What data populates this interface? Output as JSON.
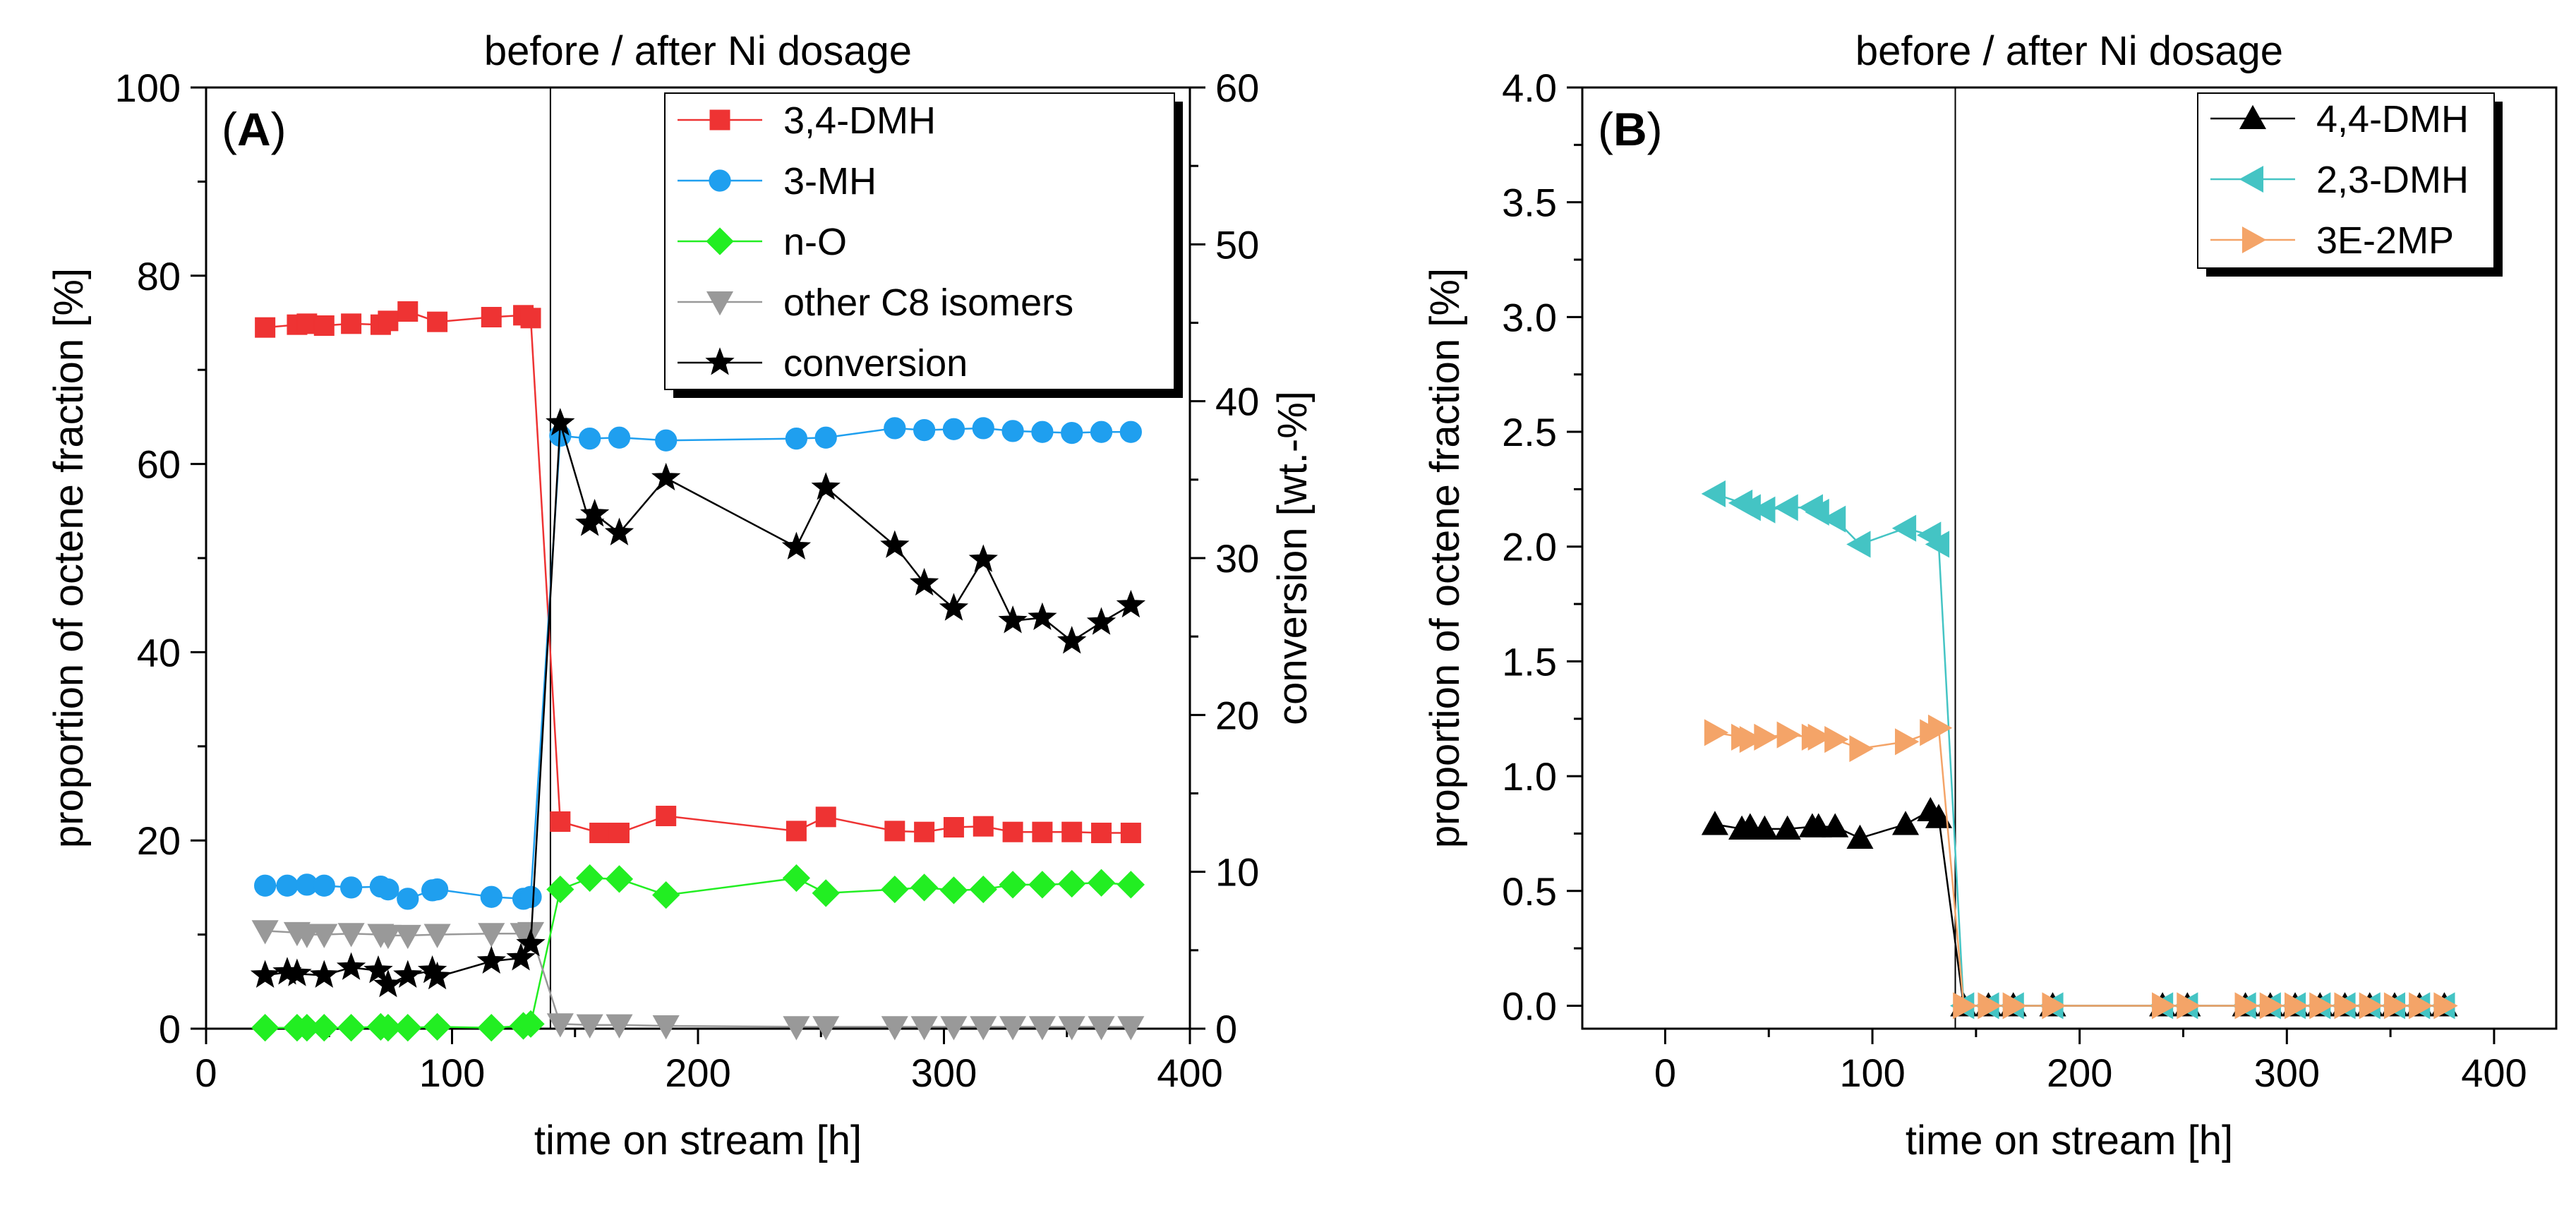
{
  "chart_data": [
    {
      "panel": "A",
      "type": "scatter",
      "title": "before / after Ni dosage",
      "panel_label": "A",
      "xlabel": "time on stream [h]",
      "ylabel": "proportion of octene fraction [%]",
      "ylabel_right": "conversion [wt.-%]",
      "xlim": [
        0,
        400
      ],
      "ylim": [
        0,
        100
      ],
      "ylim_right": [
        0,
        60
      ],
      "x_ticks": [
        0,
        100,
        200,
        300,
        400
      ],
      "y_ticks": [
        0,
        20,
        40,
        60,
        80,
        100
      ],
      "y_ticks_right": [
        0,
        10,
        20,
        30,
        40,
        50,
        60
      ],
      "divider_x": 140,
      "legend_position": "top-right",
      "series": [
        {
          "name": "3,4-DMH",
          "color": "#ee3333",
          "marker": "square",
          "axis": "left",
          "x": [
            24,
            37,
            41,
            48,
            59,
            71,
            74,
            82,
            94,
            116,
            129,
            132,
            144,
            160,
            168,
            187,
            240,
            252,
            280,
            292,
            304,
            316,
            328,
            340,
            352,
            364,
            376
          ],
          "y": [
            74.5,
            74.8,
            74.9,
            74.7,
            74.9,
            74.8,
            75.2,
            76.2,
            75.1,
            75.6,
            75.8,
            75.5,
            22,
            20.8,
            20.8,
            22.6,
            21.0,
            22.5,
            21.0,
            20.9,
            21.4,
            21.5,
            20.9,
            20.9,
            20.9,
            20.8,
            20.8
          ]
        },
        {
          "name": "3-MH",
          "color": "#1f9fef",
          "marker": "circle",
          "axis": "left",
          "x": [
            24,
            33,
            41,
            48,
            59,
            71,
            74,
            82,
            92,
            94,
            116,
            129,
            132,
            144,
            156,
            168,
            187,
            240,
            252,
            280,
            292,
            304,
            316,
            328,
            340,
            352,
            364,
            376
          ],
          "y": [
            15.2,
            15.2,
            15.3,
            15.2,
            15.0,
            15.1,
            14.8,
            13.8,
            14.7,
            14.8,
            14.0,
            13.8,
            14.0,
            63.0,
            62.7,
            62.8,
            62.5,
            62.7,
            62.8,
            63.8,
            63.6,
            63.7,
            63.8,
            63.5,
            63.4,
            63.3,
            63.4,
            63.4
          ]
        },
        {
          "name": "n-O",
          "color": "#22ee22",
          "marker": "diamond",
          "axis": "left",
          "x": [
            24,
            37,
            41,
            48,
            59,
            71,
            74,
            82,
            94,
            116,
            129,
            132,
            144,
            156,
            168,
            187,
            240,
            252,
            280,
            292,
            304,
            316,
            328,
            340,
            352,
            364,
            376
          ],
          "y": [
            0.1,
            0.1,
            0.1,
            0.1,
            0.1,
            0.2,
            0.1,
            0.1,
            0.2,
            0.1,
            0.3,
            0.5,
            14.8,
            16.0,
            15.9,
            14.2,
            16.0,
            14.4,
            14.8,
            15.0,
            14.7,
            14.8,
            15.3,
            15.3,
            15.4,
            15.5,
            15.3
          ]
        },
        {
          "name": "other C8 isomers",
          "color": "#999999",
          "marker": "triangle-down",
          "axis": "left",
          "x": [
            24,
            37,
            41,
            48,
            59,
            71,
            74,
            82,
            94,
            116,
            129,
            132,
            144,
            156,
            168,
            187,
            240,
            252,
            280,
            292,
            304,
            316,
            328,
            340,
            352,
            364,
            376
          ],
          "y": [
            10.4,
            10.2,
            10.0,
            10.0,
            10.1,
            10.0,
            9.9,
            9.9,
            10.0,
            10.1,
            10.1,
            10.2,
            0.5,
            0.4,
            0.4,
            0.3,
            0.2,
            0.2,
            0.2,
            0.2,
            0.2,
            0.2,
            0.2,
            0.2,
            0.2,
            0.2,
            0.2
          ]
        },
        {
          "name": "conversion",
          "color": "#000000",
          "marker": "star",
          "axis": "right",
          "x": [
            24,
            33,
            37,
            48,
            59,
            70,
            74,
            82,
            92,
            94,
            116,
            128,
            132,
            144,
            156,
            158,
            168,
            187,
            240,
            252,
            280,
            292,
            304,
            316,
            328,
            340,
            352,
            364,
            376
          ],
          "y": [
            3.4,
            3.6,
            3.5,
            3.4,
            3.9,
            3.7,
            2.8,
            3.4,
            3.7,
            3.3,
            4.3,
            4.5,
            5.4,
            38.6,
            32.2,
            32.8,
            31.6,
            35.1,
            30.7,
            34.5,
            30.8,
            28.4,
            26.8,
            29.9,
            26.0,
            26.2,
            24.7,
            25.9,
            27.0
          ]
        }
      ]
    },
    {
      "panel": "B",
      "type": "scatter",
      "title": "before / after Ni dosage",
      "panel_label": "B",
      "xlabel": "time on stream [h]",
      "ylabel": "proportion of octene fraction [%]",
      "xlim": [
        -40,
        430
      ],
      "ylim": [
        -0.1,
        4.0
      ],
      "x_ticks": [
        0,
        100,
        200,
        300,
        400
      ],
      "y_ticks": [
        0.0,
        0.5,
        1.0,
        1.5,
        2.0,
        2.5,
        3.0,
        3.5,
        4.0
      ],
      "y_tick_labels": [
        "0.0",
        "0.5",
        "1.0",
        "1.5",
        "2.0",
        "2.5",
        "3.0",
        "3.5",
        "4.0"
      ],
      "divider_x": 140,
      "legend_position": "top-right",
      "series": [
        {
          "name": "4,4-DMH",
          "color": "#000000",
          "marker": "triangle-up",
          "x": [
            24,
            37,
            41,
            48,
            59,
            71,
            74,
            82,
            94,
            116,
            128,
            132,
            144,
            156,
            168,
            187,
            240,
            252,
            280,
            292,
            304,
            316,
            328,
            340,
            352,
            364,
            376
          ],
          "y": [
            0.79,
            0.77,
            0.78,
            0.77,
            0.77,
            0.78,
            0.78,
            0.78,
            0.73,
            0.79,
            0.85,
            0.82,
            0.0,
            0.0,
            0.0,
            0.0,
            0.0,
            0.0,
            0.0,
            0.0,
            0.0,
            0.0,
            0.0,
            0.0,
            0.0,
            0.0,
            0.0
          ]
        },
        {
          "name": "2,3-DMH",
          "color": "#44c4c4",
          "marker": "triangle-left",
          "x": [
            24,
            37,
            41,
            48,
            59,
            71,
            74,
            82,
            94,
            116,
            128,
            132,
            144,
            156,
            168,
            187,
            240,
            252,
            280,
            292,
            304,
            316,
            328,
            340,
            352,
            364,
            376
          ],
          "y": [
            2.23,
            2.19,
            2.17,
            2.16,
            2.17,
            2.17,
            2.15,
            2.12,
            2.01,
            2.08,
            2.05,
            2.01,
            0.0,
            0.0,
            0.0,
            0.0,
            0.0,
            0.0,
            0.0,
            0.0,
            0.0,
            0.0,
            0.0,
            0.0,
            0.0,
            0.0,
            0.0
          ]
        },
        {
          "name": "3E-2MP",
          "color": "#f4a468",
          "marker": "triangle-right",
          "x": [
            24,
            37,
            41,
            48,
            59,
            71,
            74,
            82,
            94,
            116,
            128,
            132,
            144,
            156,
            168,
            187,
            240,
            252,
            280,
            292,
            304,
            316,
            328,
            340,
            352,
            364,
            376
          ],
          "y": [
            1.19,
            1.17,
            1.16,
            1.17,
            1.18,
            1.17,
            1.17,
            1.16,
            1.12,
            1.15,
            1.19,
            1.21,
            0.0,
            0.0,
            0.0,
            0.0,
            0.0,
            0.0,
            0.0,
            0.0,
            0.0,
            0.0,
            0.0,
            0.0,
            0.0,
            0.0,
            0.0
          ]
        }
      ]
    }
  ]
}
